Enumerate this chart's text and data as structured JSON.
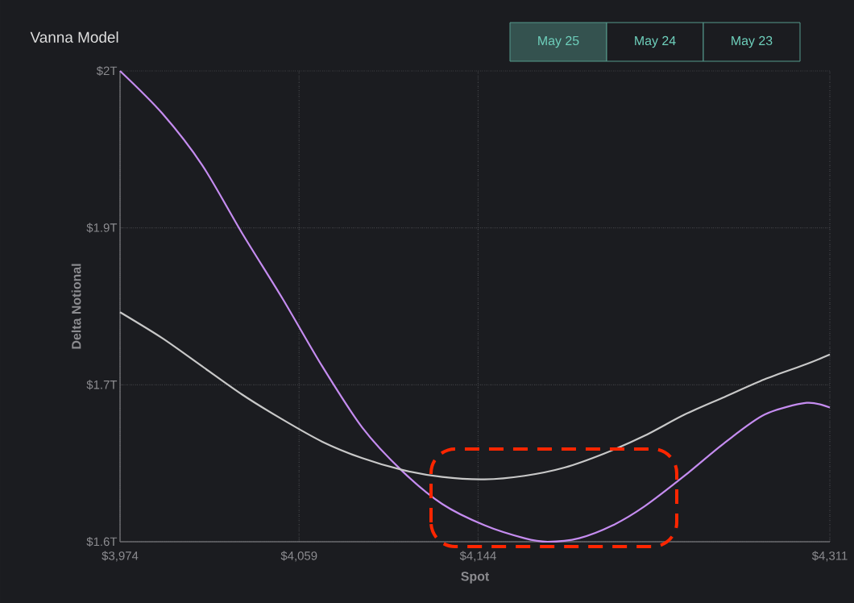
{
  "chart_data": {
    "type": "line",
    "title": "Vanna Model",
    "xlabel": "Spot",
    "ylabel": "Delta Notional",
    "annotations": [
      "May 25",
      "May 24",
      "May 23"
    ],
    "xlim": [
      3974,
      4311
    ],
    "ylim": [
      1.6,
      2.0
    ],
    "xticks": [
      {
        "value": 3974,
        "label": "$3,974"
      },
      {
        "value": 4059,
        "label": "$4,059"
      },
      {
        "value": 4144,
        "label": "$4,144"
      },
      {
        "value": 4311,
        "label": "$4,311"
      }
    ],
    "yticks": [
      {
        "value": 1.6,
        "label": "$1.6T"
      },
      {
        "value": 1.7333,
        "label": "$1.7T"
      },
      {
        "value": 1.8667,
        "label": "$1.9T"
      },
      {
        "value": 2.0,
        "label": "$2T"
      }
    ],
    "grid": true,
    "series": [
      {
        "color": "#c58cf0",
        "x": [
          3974,
          3994,
          4013,
          4032,
          4051,
          4070,
          4089,
          4108,
          4127,
          4147,
          4166,
          4177,
          4192,
          4208,
          4223,
          4242,
          4261,
          4280,
          4300,
          4311
        ],
        "values": [
          2.0,
          1.964,
          1.92,
          1.862,
          1.807,
          1.749,
          1.697,
          1.66,
          1.632,
          1.614,
          1.603,
          1.6,
          1.603,
          1.614,
          1.63,
          1.656,
          1.684,
          1.708,
          1.718,
          1.714
        ]
      },
      {
        "color": "#c8c8c8",
        "x": [
          3974,
          3994,
          4013,
          4032,
          4051,
          4070,
          4089,
          4108,
          4127,
          4147,
          4166,
          4185,
          4204,
          4223,
          4242,
          4261,
          4280,
          4300,
          4311
        ],
        "values": [
          1.795,
          1.773,
          1.749,
          1.725,
          1.704,
          1.685,
          1.671,
          1.661,
          1.655,
          1.653,
          1.656,
          1.663,
          1.675,
          1.69,
          1.708,
          1.723,
          1.738,
          1.751,
          1.759
        ]
      }
    ]
  }
}
